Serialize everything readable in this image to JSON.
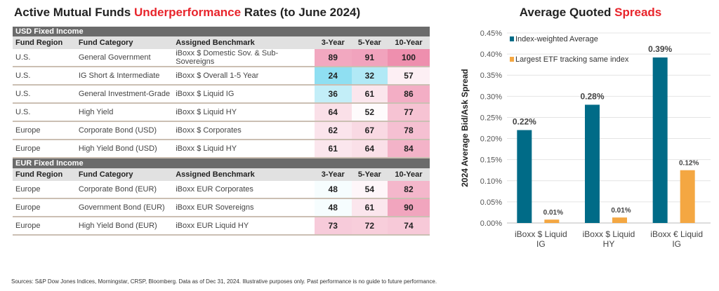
{
  "left": {
    "title_pre": "Active Mutual Funds ",
    "title_red": "Underperformance",
    "title_post": " Rates (to June 2024)",
    "headers": [
      "Fund Region",
      "Fund Category",
      "Assigned Benchmark",
      "3-Year",
      "5-Year",
      "10-Year"
    ],
    "sections": [
      {
        "name": "USD Fixed Income",
        "rows": [
          [
            "U.S.",
            "General Government",
            "iBoxx $ Domestic Sov. & Sub-Sovereigns",
            89,
            91,
            100
          ],
          [
            "U.S.",
            "IG Short & Intermediate",
            "iBoxx $ Overall 1-5 Year",
            24,
            32,
            57
          ],
          [
            "U.S.",
            "General Investment-Grade",
            "iBoxx $ Liquid IG",
            36,
            61,
            86
          ],
          [
            "U.S.",
            "High Yield",
            "iBoxx $ Liquid HY",
            64,
            52,
            77
          ],
          [
            "Europe",
            "Corporate Bond (USD)",
            "iBoxx $ Corporates",
            62,
            67,
            78
          ],
          [
            "Europe",
            "High Yield Bond (USD)",
            "iBoxx $ Liquid HY",
            61,
            64,
            84
          ]
        ]
      },
      {
        "name": "EUR Fixed Income",
        "rows": [
          [
            "Europe",
            "Corporate Bond (EUR)",
            "iBoxx EUR Corporates",
            48,
            54,
            82
          ],
          [
            "Europe",
            "Government Bond (EUR)",
            "iBoxx EUR Sovereigns",
            48,
            61,
            90
          ],
          [
            "Europe",
            "High Yield Bond (EUR)",
            "iBoxx EUR Liquid HY",
            73,
            72,
            74
          ]
        ]
      }
    ],
    "colors": {
      "high": "#ee8fae",
      "mid": "#ffffff",
      "low": "#8fdff2"
    }
  },
  "chart_data": {
    "type": "bar",
    "title_pre": "Average Quoted ",
    "title_red": "Spreads",
    "ylabel": "2024 Average Bid/Ask Spread",
    "ylim": [
      0,
      0.45
    ],
    "yunit": "%",
    "yticks": [
      "0.00%",
      "0.05%",
      "0.10%",
      "0.15%",
      "0.20%",
      "0.25%",
      "0.30%",
      "0.35%",
      "0.40%",
      "0.45%"
    ],
    "categories": [
      [
        "iBoxx $ Liquid",
        "IG"
      ],
      [
        "iBoxx $ Liquid",
        "HY"
      ],
      [
        "iBoxx € Liquid",
        "IG"
      ]
    ],
    "series": [
      {
        "name": "Index-weighted Average",
        "color": "#006b87",
        "values": [
          0.22,
          0.28,
          0.392
        ],
        "labels": [
          "0.22%",
          "0.28%",
          "0.39%"
        ]
      },
      {
        "name": "Largest ETF tracking same index",
        "color": "#f4a742",
        "values": [
          0.008,
          0.013,
          0.125
        ],
        "labels": [
          "0.01%",
          "0.01%",
          "0.12%"
        ]
      }
    ],
    "grid": true,
    "legend": "top-left"
  },
  "footnote": "Sources: S&P Dow Jones Indices, Morningstar, CRSP, Bloomberg.  Data as of Dec 31, 2024.  Illustrative purposes only.  Past performance is no guide to future performance."
}
